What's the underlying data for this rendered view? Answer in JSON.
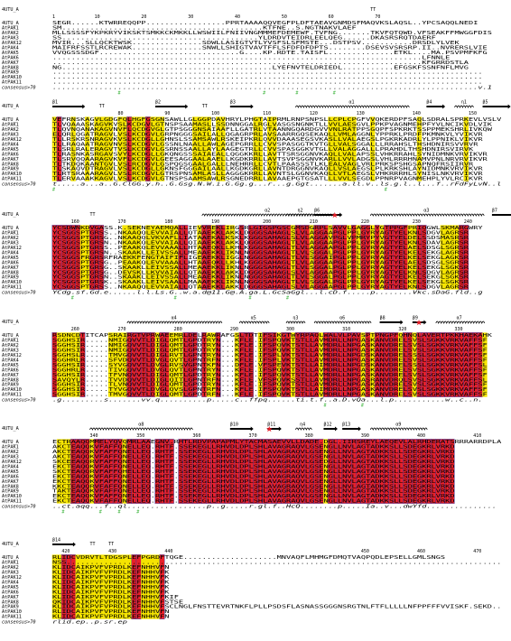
{
  "sequences": [
    "4UTU_A",
    "AtPAK1",
    "AtPAK2",
    "AtPAK3",
    "AtPAK12",
    "AtPAK4",
    "AtPAK5",
    "AtPAK6",
    "AtPAK7",
    "AtPAK8",
    "AtPAK9",
    "AtPAK10",
    "AtPAK11"
  ],
  "consensus_label": "consensus>70",
  "colors": {
    "strict": "#e8202a",
    "similar": "#f5e400",
    "frame": "#1e3cb4",
    "marker": "#3cb43c",
    "star": "#e8202a"
  },
  "blocks": [
    {
      "ruler": [
        {
          "label": "1",
          "col": 0
        },
        {
          "label": "10",
          "col": 9
        },
        {
          "label": "20",
          "col": 19
        },
        {
          "label": "30",
          "col": 29
        },
        {
          "label": "40",
          "col": 39
        },
        {
          "label": "50",
          "col": 49
        },
        {
          "label": "60",
          "col": 59
        },
        {
          "label": "70",
          "col": 69
        }
      ],
      "ss": [
        {
          "kind": "TT",
          "col": 68
        }
      ],
      "rows": [
        "SEGR......KTWRREQQPP.................PPRTAAAAQQVEGFPLDFTAEAVGNMDSFMAQVKSLAQSL..YPCSAQQLNEDI",
        "SM...........................................KTFNE..S.NGTNAKVLAEF",
        "MLLSSSSFYKPKRYVIKSKTSMKKCKMKKLLWSWIILFNIIVNGMMMEFDEMEWF.TVFNG.......TKVFQTQWD.VFSEAKFFMWGGFDIS",
        "SS..........................................YLDRDVTEIDRLEELQEG......DKASRSRQTDAERF",
        "MVIR...SLLQCKTWSK...............SDWLLASIGTVTLYVSFSLSFMSTE...DSTPSV...........DRSDLYLVEK",
        "MAIFRFSSTLRCREWAK...............SNWLLSHIGTVAVTFFLSFDFDFDPTS........DSEVSVSRSRP.II..NVRERSLVIE",
        "VVQGSSSDGF..............................G....KP.RDTE.TAISFL..............ETKL....MA.PSVPMFKFG",
        "...............................................................................LFNNLE",
        "...............................................................................KFGRRDSTLA",
        "NG.............................................LYEFNVTELDRIEDL...........EFGSKFSSNFNFLMVG",
        "............................................................................................",
        "............................................................................................",
        "............................................................................................"
      ],
      "consensus": "...........................................................................................v.1"
    },
    {
      "ruler": [
        {
          "label": "80",
          "col": 14
        },
        {
          "label": "90",
          "col": 24
        },
        {
          "label": "100",
          "col": 34
        },
        {
          "label": "110",
          "col": 45
        },
        {
          "label": "120",
          "col": 55
        },
        {
          "label": "130",
          "col": 65
        },
        {
          "label": "140",
          "col": 77
        },
        {
          "label": "150",
          "col": 89
        }
      ],
      "ss": [
        {
          "kind": "beta",
          "label": "β1",
          "col": 0,
          "len": 7
        },
        {
          "kind": "TT",
          "col": 10
        },
        {
          "kind": "beta",
          "label": "β2",
          "col": 22,
          "len": 7
        },
        {
          "kind": "TT",
          "col": 32
        },
        {
          "kind": "beta",
          "label": "β3",
          "col": 38,
          "len": 5
        },
        {
          "kind": "helix",
          "label": "α1",
          "col": 52,
          "len": 24
        },
        {
          "kind": "beta",
          "label": "β4",
          "col": 80,
          "len": 4
        },
        {
          "kind": "helix",
          "label": "η1",
          "col": 86,
          "len": 4
        },
        {
          "kind": "beta",
          "label": "β5",
          "col": 92,
          "len": 6
        }
      ],
      "rows": [
        "VEFRNSKAGVLGDGFQLHGFGSGNSAWLLGLGGPDAVHRYLPHGTAIPRMLRNPSNPSLLCPLCPGFVVQKERDPFSAQLSDRALSPRKEVLVSLVR",
        "TLVQAAASKAGVKVSLKCDGVLGTNSPSAAMASLLSSDNNGGALRGLVASGSNGNKTLLVVLAESGVLPPKPVAGNMEHPFYVLNCIKVDLVIK",
        "TLQVNQANAKAGVNVFLQCDGVGLGTPSGGGNSAIAAFLLGATRLVTAANNGQARDGVVVNLRATPPSGQPFSPKRKTSSPPMEKSHRLIVKQW",
        "ELQRLQGATRAGVLVSLKCDGVLGRPNGGGSAILALLQGAGRPRLAVSAARRGQSEKAQLLVMLAGGNLYPPRKLPRDFPKMNKVLYVIKVR",
        "TLLRSKRSNRAGVKVSLKCDGLLGHNSLSSAMSAWLRSKEIPKRLQVVDAAASEGSVKASLLVALAEGSLPGKRKADRLYLPPNIKLVIKVR",
        "TLLRAQAATRAGVNVSLKCDGVLGSSNLNAALLAWLAGEPGRRLLCVVSPASGGTKVTGLLVALSGGALLLRRAHSLTHSHDNIRSVVRVR",
        "TLSRLRALERAGVTVSLKCDGVLGSRNSSAALLAYLAAGEGTRLLCVVSPASGGKVTGLLVALAGGALLLPRAHDLTHSHDNIRSVIRVK",
        "TLRASNKASRGAVSVYLKCDGLLGKQNGSSSAIAEALLQGGKKRLLAVTTSRSGGNVKAQLLVALAPSSLVHKRRAHLSYNIDMNKVRVIKVR",
        "TLSRVQQAARAGVKVFLKCDGVLGEESAGGAALAAELLKGDKRRLLAVTSVPSGGNVKARLLVVLADGSLVHLRRRHNAMVPNLNRVRVIKVR",
        "TLTKDQKAANTGVLVSLRCDGVLGSPQGSGAALGALLLNEHRRLLCVTLPAASSSTLKLEALVAGLVRLPRKSPSHGSAPNQFRSIIRVR",
        "TLSKAQVDTRAGVLVSLKCDGLLGKNSFGGGAILAALLKGDKGRLLAVNTDRGGNVKAQLLVSLAEGSLPLKRKSHLAYNIDMNKVRVIKVR",
        "TLRTSRAAARAGVLVSLRCDGVLGTRSPNSAMLASLLAGGGKRRLLAVNTSLGGNVKAQLLVTLAEGSLVHKRRRHLSYNISLNKVRVIKVR",
        "TLERVAAAKKAGVLVSLKCDGVLGTNSPSAAMSAWLRSGNEDRRLLAVAAEPGTGSATLLLVVLSEGDLPPNRPVAGNMEHPLYVLRCIKVR"
      ],
      "consensus": "t.....a...a..G.ClGG.y.h..G.Gsg.N.W.i.G.Gg.g...r...g.Ggt.......a.ll.v..ls.g.l..l...f..rFdFyLvN..l.r"
    },
    {
      "ruler": [
        {
          "label": "160",
          "col": 4
        },
        {
          "label": "170",
          "col": 14
        },
        {
          "label": "180",
          "col": 24
        },
        {
          "label": "190",
          "col": 34
        },
        {
          "label": "200",
          "col": 45
        },
        {
          "label": "210",
          "col": 55
        },
        {
          "label": "220",
          "col": 66
        },
        {
          "label": "230",
          "col": 77
        },
        {
          "label": "240",
          "col": 88
        },
        {
          "label": "250",
          "col": 98
        }
      ],
      "ss": [
        {
          "kind": "TT",
          "col": 8
        },
        {
          "kind": "helix",
          "label": "α2",
          "col": 32,
          "len": 28
        },
        {
          "kind": "helix",
          "label": "η2",
          "col": 50,
          "len": 6
        },
        {
          "kind": "beta",
          "label": "β6",
          "col": 56,
          "len": 6
        },
        {
          "kind": "star",
          "col": 60
        },
        {
          "kind": "helix",
          "label": "α3",
          "col": 68,
          "len": 24
        },
        {
          "kind": "beta",
          "label": "β7",
          "col": 94,
          "len": 6
        }
      ],
      "rows": [
        "YCSDWNKDVGASS.K.SEKNEYAEMQALLIEVVREKLIRGSRLGIGSPGSCGMSDGRPLSAVVLGAGGLYGTPPGFPRIQGWLSKMARGWRY",
        "YCSGGSPTGRSS..NKAAQQLEVVAIALLQTAAEKKLAKKLDGGGSAHAGLSLVLAGGAAPGLPPLGYRYAGTYELKNLSDGVLAGRSR",
        "YCSGGSPTGRSG..NKAAQQLVKVAFLLIATAAEKALKSKLKGGGSAHAGLSLVLAGGAVPGLVPMRYPYVGTYELDELSSDSMASRSR",
        "YCSGGSPTGRSN..NKAAKQLEVVAIALLQIAAEKKLAKKLQGGGSAHAGLTLVLAGGAAPGLPPLGYRYAGTYELKNLSDAVLAGRSR",
        "YCSGGSPTGRSS..PEAAKQLEVVAAALLHTAAEQKLLKHLKGGGSAHAGLTLVLAGGAAPGLPPLGYRYAGTYELAELSDSGLSGRSR",
        "YCSGGSPTGRSN..SKAAKLLEIVSSALLMEAAEKKLIKNLNGGGSAHAGLTLVLSGGALPGLPPLGYRYAGTYELKELSEKGLAGRSR",
        "YCSGGSFRGRSRFRAEKKFENGTAIFIFLIGEAEKKLIGGLNGGGSAHAGLTLVLSGGAIPGLPPLGYRYAGTYELKELSEKGLAGKSR",
        "YCSGGSPTGRSG..PEAAKQLEVVAAALLHTAAEQKLLKHLKGGGSAHAGLTLVLAGGAAPGLPPLGYRYAGTYELAELSDSGLSGRSR",
        "YCSGGSPTGRSG..SKAAKLLEIVSSALLMEAAEKKLIKNLNGGGSAHAGLTLVLSGGALPGLPPLGYRYAGTYELKELSEKGLSGKSR",
        "YCSGGSPTGRSG..DEVSKLLKVVAIALLQTAAEKKLAKKLDGGGSAHAGLSLVLAGGAAPGLPPLGYRYAGTYELKNLSDGVLAGRSR",
        "YCSGGSPTGRSN..SKAAKLLEIVSSALLMEAAEKKLIKNLNGGGSAHAGLTLVLSGGALPGLPPLGYRYAGTYELKELSEKGLSGKSR",
        "YCSGGSPTGRSK..SKAAKLLEIVSAALLMAAAEKKLIKNLNGGGSAHAGLTLVLSGGALPGLPPLGYRYAGTYELKELSEKGLSGKSR",
        "YCSGGSPTGRSS..NKAAQQLEVVAIALLQTAAEKKLAKKLDGGGSAHAGLSLVLAGGAAPGLPPLGYRYAGTYELKNLSDGVLAGRSR"
      ],
      "consensus": "YCdg.sf.Gd.e......l.l.Ls.G..w.a.d@11.G@.A.ga.L.GcSaGgl...l.cD.f.....p........Vkc.sDaG.fld..g"
    },
    {
      "ruler": [
        {
          "label": "260",
          "col": 4
        },
        {
          "label": "270",
          "col": 14
        },
        {
          "label": "280",
          "col": 26
        },
        {
          "label": "290",
          "col": 38
        },
        {
          "label": "300",
          "col": 50
        },
        {
          "label": "310",
          "col": 62
        },
        {
          "label": "320",
          "col": 74
        },
        {
          "label": "330",
          "col": 86
        }
      ],
      "ss": [
        {
          "kind": "helix",
          "label": "α4",
          "col": 16,
          "len": 20
        },
        {
          "kind": "helix",
          "label": "α5",
          "col": 40,
          "len": 6
        },
        {
          "kind": "helix",
          "label": "η3",
          "col": 50,
          "len": 4
        },
        {
          "kind": "helix",
          "label": "α6",
          "col": 56,
          "len": 12
        },
        {
          "kind": "beta",
          "label": "β8",
          "col": 70,
          "len": 5
        },
        {
          "kind": "beta",
          "label": "β9",
          "col": 77,
          "len": 3
        },
        {
          "kind": "star",
          "col": 78
        },
        {
          "kind": "helix",
          "label": "α7",
          "col": 82,
          "len": 10
        }
      ],
      "rows": [
        "RSDNCDTITCAPSRAIRGTVPRWAEEMRLDELRAWRAFGSLTDTIFSIKGTWYRPAQLWALVLPAVSPTPNGPFQHNQLAVERTPKKHAEKAHK",
        "SGGHSIR.....NMIGQVVTLDIGLQMTLGPDTRYN...KFLE.IFSPQVKTSTLLAVMDRLLNPGASKANVDRELSVSLSGKKVRKVAFFSF",
        "SGGHSIR.....NMIGQVVTLDIGLQMTLGPDTRYN...KFLE.IFSPQVKTSTLLAVMDRLLNPGASKANVDRELSVSLSGKKVRKVAFFSF",
        "SGGHSIR.....NMIGQVVTLDIGLQMTLGPDTRYN...KFLE.IFSPQVKTSTLLAVMDRLLNPGASKANVDRELSVSLSGKKVRKVAFFSF",
        "SGGHSLR.....TMVGQVVTLDIGLRVTLGPNTRYN...KFLE.IFSPLVKTSTLLAVMDRLLNPGDSKANVDRELSSSLSGKKVRKVAFFSF",
        "SGGHRLR.....SFVDQVVTLDVGLQVTLGPNTRFN...KFLE.IFSPLVKTSTLLAVMDRLLNPGASKANVDRELSVSLSGKKVRKVAFFSF",
        "SGGHSIR.....SYVGQVVTLDVGLRVSVGPNTKFN...DFLE.VFSPEVKTSTLLAIMDRLLNPGDSKANVDRELSSSLSGKKVRKVAFFSL",
        "SGGHRLR.....TIVGQVVTLDVGLQVTLGPNTRYN...KFLE.IFSPQVKTSTLLAVMDRLLNPGASKANVDRELSVSLSGKKVRKVAFFSF",
        "SGGHSIR.....TFVNQVVTLDIGLQMTLGPDTRYN...KFLE.IFSPQVKTSTLLAVMDRLLNPGASKANVDRELSVSLSGKKVRKVAFFSF",
        "SAVQYLR.....TVVDQVVTLDIGLQITLGPNTRFN...KFLE.VFSPQVKSSTLLAVMDRLLNPGASRANVDRQLSVSLSGKKVRKVAFFSL",
        "SGGHSIR.....TLVNQVVTLDIGLQMTLGPDTRYN...KFLE.IFSPQVKTSTLLAVMDRLLNPGASKANVDRELSVSLSGKKVRKVAFFSF",
        "SGGHSIR.....TYVGQVVTLDVGLQVSLGPNTRFN...KFLE.IFSPQVKTSTLLAIMDRLLNPGASKANVDRELSVSLSGKKVRKVAFFSF",
        "SGGHSIR.....TMVGQVVTLDIGLQMTLGPDTRFN...KFLE.IFSPQVKTSTLLAVMDRLLNPGASKANVDRELSVSLSGKKVRKVAFFSF"
      ],
      "consensus": ".g.........s.......vv.q..........p.....c..ffpq......ti.t.f..a.D.vQa...l.p...........w..c..n."
    },
    {
      "ruler": [
        {
          "label": "340",
          "col": 8
        },
        {
          "label": "350",
          "col": 18
        },
        {
          "label": "360",
          "col": 30
        },
        {
          "label": "370",
          "col": 42
        },
        {
          "label": "380",
          "col": 54
        },
        {
          "label": "390",
          "col": 66
        },
        {
          "label": "400",
          "col": 78
        },
        {
          "label": "410",
          "col": 90
        }
      ],
      "ss": [
        {
          "kind": "helix",
          "label": "α8",
          "col": 8,
          "len": 22
        },
        {
          "kind": "beta",
          "label": "β10",
          "col": 38,
          "len": 5
        },
        {
          "kind": "beta",
          "label": "β11",
          "col": 46,
          "len": 3
        },
        {
          "kind": "star",
          "col": 46
        },
        {
          "kind": "helix",
          "label": "η4",
          "col": 52,
          "len": 3
        },
        {
          "kind": "beta",
          "label": "β12",
          "col": 58,
          "len": 3
        },
        {
          "kind": "beta",
          "label": "β13",
          "col": 62,
          "len": 4
        },
        {
          "kind": "helix",
          "label": "α9",
          "col": 68,
          "len": 12
        }
      ],
      "rows": [
        "ECTRAAQQMMELYQVQMRLAAEGNV.RHTLRDVPAPAPMLYTACMASAEVVLLDADE.DGL.IIRSREYLAEQEVLALRHDERATSRRRARRDPLAMEVKF",
        "AKCTEAQQKVFAFFQNELLEQ.RHTF.SSEKEGLLRHVDLDPLSHLAVAGRAQVLGSENGLLNVLAGTADKKSLLSDEGKRLVRKD",
        "AKCTEAQQKVFAFFQNELLEQ.RHTF.SSEKEGLLRHVDLDPLSHLAVAGRAQVLGSENGLLNVLAGTADKKSLLSDEGKRLVRKD",
        "AKCTEAQQKVFAFFQNELLEQ.RHTF.SSEKEGLLRHVDLDPLSHLAVAGRAQVLGSENGLLNVLAGTADKKSLLSDEGKRLVRKD",
        "SKCEEAQQRVFAFFQNELLEQ.RHTF.SSEKEGLLRHVDLDPLSHLAVAGRAQVLGSEDGLLNVLAGTADKKSLLSDEGKRLVRKD",
        "EKCTEAQQKVFAFFQNELLEQ.RHTF.SSEKEGLLRHVDLDPLSHLAVAGRAQVLGSENGLLNVLAGTADKKSLLSDEGKRLVRKD",
        "SKCTEAQQRVFAFFQHELLEQ.RHTF.SSEKEGLLRHVDLDPLSHLAVAGRAQVLGSENGLLNVLAGTADKKSLLSDEGKRLVRKD",
        "EKCTEAQQKVFAFFQNELLEQ.RHTF.SSEKEGLLRHVDLDPLSHLAVAGRAQVLGSENGLLNVLAGTADKKSLLSDEGKRLVRKD",
        "EKCTEAQQKVFAFFQNELLEQ.RHTF.SSEKEGLLRHVDLDPLSHLAVAGRAQVLGSENGLLNVLAGTADKKSLLSDEGKRLVRKD",
        "KKCTEAQQRVFAFFQNELLEQ.RHTF.SSEKEGLLRHVDLDPLSHLAVAGRAQVLGSENGLLNVLAGTADKKSLLSDEGKRLVRKD",
        "TAKTEAQQKVFAFFQNELLEQ.RHTF.SSEKEGLLRHVDLDPLSHLAVAGRAQVLGSENGLLNVLAGTADKKSLLSDEGKRLVRKD",
        "EKCTEAQQKVFAFFQNELLEQ.RHTF.SSEKEGLLRHVDLDPLSHLAVAGRAQVLGSENGLLNVLAGTADKKSLLSDEGKRLVRKD",
        "EKCTEAQQKVFAFFQNELLEQ.RHTF.SSEKEGLLRHVDLDPLSHLAVAGRAQVLGSENGLLNVLAGTADKKSLLSDEGKRLVRKD"
      ],
      "consensus": "..ct.aqq...f..ql.................p..g.....r.gl.f..HcQ........p.....Ia..v...dwYfd..............."
    },
    {
      "ruler": [
        {
          "label": "420",
          "col": 2
        },
        {
          "label": "430",
          "col": 12
        },
        {
          "label": "440",
          "col": 24
        },
        {
          "label": "450",
          "col": 66
        },
        {
          "label": "460",
          "col": 78
        },
        {
          "label": "470",
          "col": 90
        }
      ],
      "ss": [
        {
          "kind": "beta",
          "label": "β14",
          "col": 0,
          "len": 5
        },
        {
          "kind": "TT",
          "col": 8
        },
        {
          "kind": "TT",
          "col": 12
        }
      ],
      "rows": [
        "RLIDCVDRVTLTDGSPLEFPGRDFTQGE....................MNVAQFLMHMGFDMQTVAQPQDLEPSELLGMLSNGS",
        "NSS.............................................................................................",
        "KLIDCAIKPVFVPRDLKEFNHHVFN",
        "KLIDCAIKPVFVPRDLKEFNHHVFK",
        "KLIDCAIKPVFVPRDLKEFNHHVFK",
        "KLIDCAIKPVFVPRDLKEFNHHVFK",
        "KLIDCAIKPVFVPRDLKEFNHHVFK",
        "KLIDCAIKPVFVPRDLKEFNHHVFK",
        "KLIDCAIKPVFVPRDLKEFNHHVFKIF",
        "QKIDCAIKPVFVPRDLKEFNHHVFSTSE",
        "KLIDCAIKPVFVPRDLKEFNHHVFSCLNGLFNSTTEVRTNKFLPLLPSDSFLASNASSGGGNSRGTNLFTFLLLLLNFPPFFFVVISKF.SEKD..VYT",
        "RLIDCAIKPVFVPRDLKEFNHHVFN",
        "KLIDCAIKPVFVPRDLKEFNHHVFN"
      ],
      "consensus": "rlid.ep..p.sr.ep"
    }
  ],
  "markers": [
    {
      "block": 1,
      "cols": [
        14,
        45,
        52,
        60
      ]
    },
    {
      "block": 2,
      "cols": [
        0,
        71
      ]
    },
    {
      "block": 3,
      "cols": [
        4,
        26,
        42,
        50
      ]
    },
    {
      "block": 4,
      "cols": [
        58,
        66
      ]
    },
    {
      "block": 5,
      "cols": [
        2,
        10,
        14,
        18
      ]
    }
  ]
}
